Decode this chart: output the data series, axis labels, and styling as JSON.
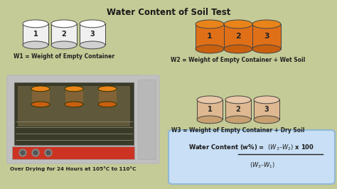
{
  "title": "Water Content of Soil Test",
  "bg_color": "#c5cb96",
  "title_fontsize": 8.5,
  "w1_label": "W1 = Weight of Empty Container",
  "w2_label": "W2 = Weight of Empty Container + Wet Soil",
  "w3_label": "W3 = Weight of Empty Container + Dry Soil",
  "oven_label": "Over Drying for 24 Hours at 105°C to 110°C",
  "container_white": "#f8f8f8",
  "container_orange_top": "#e8841a",
  "container_orange_body": "#e07018",
  "container_orange_dark": "#c86010",
  "container_peach_top": "#e8c8a8",
  "container_peach_body": "#ddb890",
  "container_peach_dark": "#c8a070",
  "container_white_top": "#ffffff",
  "container_white_body": "#f0f0f0",
  "container_white_dark": "#d0d0d0",
  "container_stroke": "#444444",
  "formula_box_color": "#c8dff5",
  "formula_box_stroke": "#90b8d8",
  "label_fontsize": 5.5,
  "oven_label_fontsize": 5.2
}
